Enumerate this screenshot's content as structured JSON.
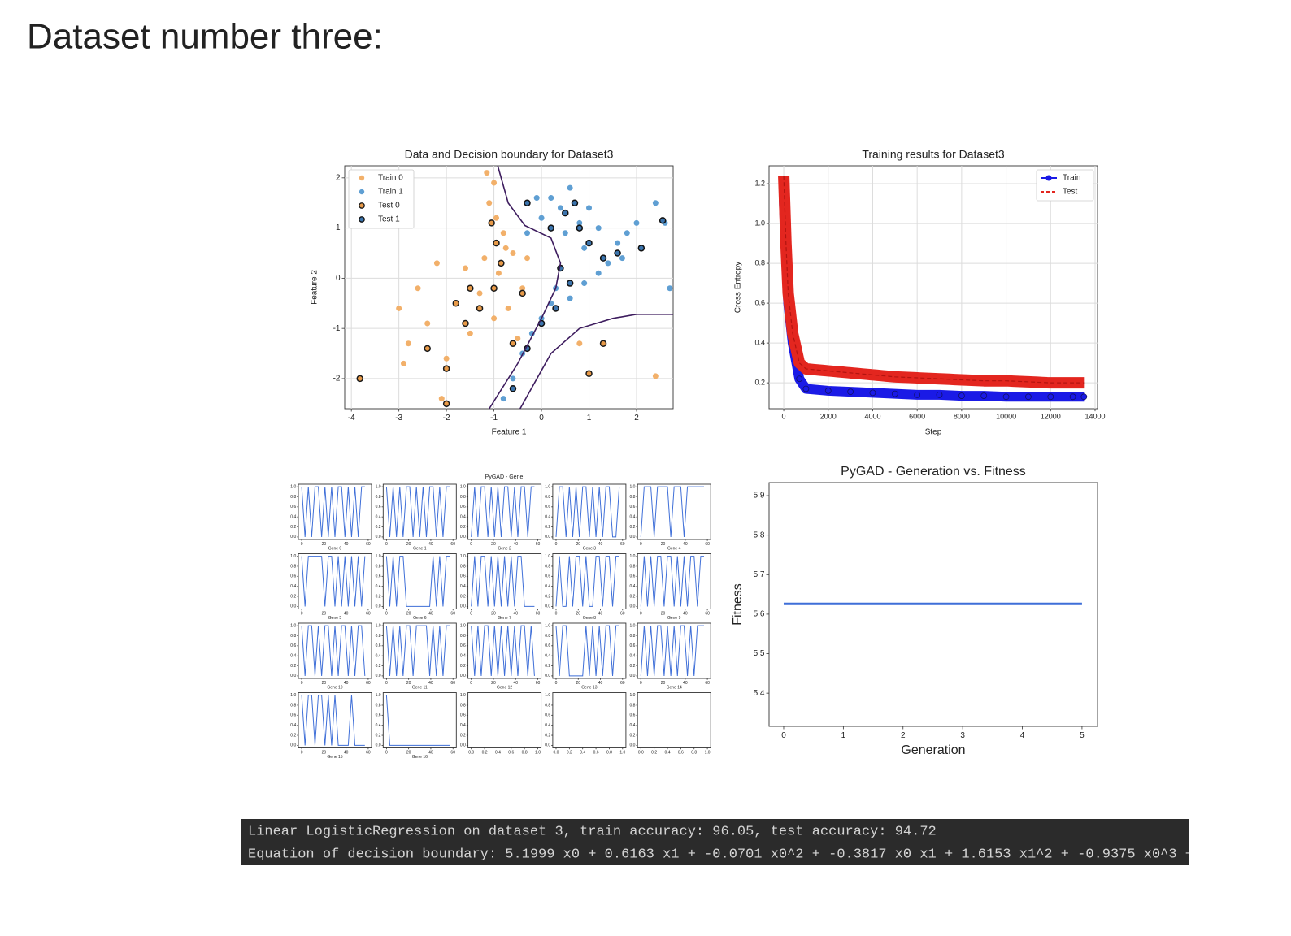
{
  "heading": "Dataset number three:",
  "chart_data": [
    {
      "type": "scatter",
      "title": "Data and Decision boundary for Dataset3",
      "x_label": "Feature 1",
      "y_label": "Feature 2",
      "xlim": [
        -4.14,
        2.77
      ],
      "ylim": [
        -2.6,
        2.24
      ],
      "xticks": [
        -4,
        -3,
        -2,
        -1,
        0,
        1,
        2
      ],
      "yticks": [
        -2,
        -1,
        0,
        1,
        2
      ],
      "grid": true,
      "legend": "upper left",
      "series": [
        {
          "name": "Train 0",
          "color": "#f2b06a",
          "x": [
            -3,
            -2.8,
            -2.6,
            -2.4,
            -2.2,
            -2.0,
            -1.8,
            -1.6,
            -1.5,
            -1.3,
            -1.2,
            -1.0,
            -0.9,
            -0.7,
            -0.6,
            -0.5,
            -0.4,
            -1.1,
            -1.0,
            -0.95,
            -0.8,
            -0.75,
            -1.15,
            -2.9,
            -2.1,
            2.4,
            0.8,
            -0.3
          ],
          "y": [
            -0.6,
            -1.3,
            -0.2,
            -0.9,
            0.3,
            -1.6,
            -0.5,
            0.2,
            -1.1,
            -0.3,
            0.4,
            -0.8,
            0.1,
            -0.6,
            0.5,
            -1.2,
            -0.2,
            1.5,
            1.9,
            1.2,
            0.9,
            0.6,
            2.1,
            -1.7,
            -2.4,
            -1.95,
            -1.3,
            0.4
          ]
        },
        {
          "name": "Train 1",
          "color": "#5f9fd3",
          "x": [
            0,
            0.2,
            0.4,
            0.6,
            0.8,
            1.0,
            1.2,
            0.5,
            0.9,
            1.4,
            1.6,
            1.8,
            2.0,
            2.4,
            2.6,
            0.3,
            0.6,
            0.9,
            1.2,
            0.0,
            -0.2,
            -0.4,
            -0.6,
            -0.8,
            0.2,
            1.7,
            2.7,
            -0.3,
            -0.1
          ],
          "y": [
            1.2,
            1.6,
            1.4,
            1.8,
            1.1,
            1.4,
            1.0,
            0.9,
            0.6,
            0.3,
            0.7,
            0.9,
            1.1,
            1.5,
            1.1,
            -0.2,
            -0.4,
            -0.1,
            0.1,
            -0.8,
            -1.1,
            -1.5,
            -2.0,
            -2.4,
            -0.5,
            0.4,
            -0.2,
            0.9,
            1.6
          ]
        },
        {
          "name": "Test 0",
          "color": "#e89a48",
          "edgecolor": "#1a1a1a",
          "x": [
            -3.82,
            -2.4,
            -2.0,
            -1.6,
            -1.3,
            -1.0,
            -0.6,
            -0.4,
            -1.8,
            -1.05,
            -0.95,
            -0.85,
            1.0,
            -2.0,
            1.3,
            -1.5
          ],
          "y": [
            -2.0,
            -1.4,
            -1.8,
            -0.9,
            -0.6,
            -0.2,
            -1.3,
            -0.3,
            -0.5,
            1.1,
            0.7,
            0.3,
            -1.9,
            -2.5,
            -1.3,
            -0.2
          ]
        },
        {
          "name": "Test 1",
          "color": "#3b74ad",
          "edgecolor": "#111111",
          "x": [
            0.2,
            0.5,
            0.8,
            1.0,
            1.3,
            1.6,
            2.1,
            2.55,
            0.4,
            0.6,
            0.0,
            -0.3,
            -0.6,
            0.3,
            -0.3,
            0.7
          ],
          "y": [
            1.0,
            1.3,
            1.0,
            0.7,
            0.4,
            0.5,
            0.6,
            1.15,
            0.2,
            -0.1,
            -0.9,
            -1.4,
            -2.2,
            -0.6,
            1.5,
            1.5
          ]
        }
      ],
      "boundary_color": "#3d1c5e",
      "boundary": [
        {
          "x": [
            -0.92,
            -0.7,
            -0.35,
            0.2,
            0.4,
            0.3,
            0,
            -0.5,
            -1.1
          ],
          "y": [
            2.24,
            1.5,
            1.05,
            0.8,
            0.3,
            -0.2,
            -0.8,
            -1.7,
            -2.6
          ]
        },
        {
          "x": [
            -0.45,
            0.2,
            0.8,
            1.5,
            2.0,
            2.77
          ],
          "y": [
            -2.6,
            -1.5,
            -1.0,
            -0.8,
            -0.72,
            -0.72
          ]
        }
      ]
    },
    {
      "type": "line",
      "title": "Training results for Dataset3",
      "x_label": "Step",
      "y_label": "Cross Entropy",
      "xlim": [
        -660,
        14110
      ],
      "ylim": [
        0.07,
        1.29
      ],
      "xticks": [
        0,
        2000,
        4000,
        6000,
        8000,
        10000,
        12000,
        14000
      ],
      "yticks": [
        0.2,
        0.4,
        0.6,
        0.8,
        {
          "value": 1,
          "label": "1.0"
        },
        1.2
      ],
      "grid": true,
      "legend": "upper right",
      "x": [
        0,
        100,
        200,
        400,
        700,
        1000,
        2000,
        3000,
        4000,
        5000,
        6000,
        7000,
        8000,
        9000,
        10000,
        11000,
        12000,
        13000,
        13500
      ],
      "series": [
        {
          "name": "Train",
          "color": "#1a1ae6",
          "marker": "o",
          "linestyle": "solid",
          "linewidth": 12,
          "values": [
            1.12,
            0.85,
            0.6,
            0.4,
            0.22,
            0.17,
            0.16,
            0.155,
            0.15,
            0.145,
            0.14,
            0.14,
            0.135,
            0.135,
            0.13,
            0.13,
            0.13,
            0.13,
            0.13
          ]
        },
        {
          "name": "Test",
          "color": "#e3261f",
          "linestyle": "dashed",
          "linewidth": 14,
          "values": [
            1.24,
            0.9,
            0.65,
            0.45,
            0.3,
            0.27,
            0.26,
            0.25,
            0.24,
            0.23,
            0.225,
            0.22,
            0.215,
            0.21,
            0.21,
            0.205,
            0.2,
            0.2,
            0.2
          ]
        }
      ]
    },
    {
      "type": "multiples",
      "title": "PyGAD - Gene",
      "color": "#3f6fd8",
      "x": [
        0,
        3,
        6,
        9,
        12,
        15,
        18,
        21,
        24,
        27,
        30,
        33,
        36,
        39,
        42,
        45,
        48,
        51,
        54,
        57
      ],
      "xlim": [
        -3,
        63
      ],
      "xticks": [
        0,
        20,
        40,
        60
      ],
      "ylim": [
        -0.05,
        1.05
      ],
      "yticks": [
        {
          "value": 0,
          "label": "0.0"
        },
        0.2,
        0.4,
        0.6,
        0.8,
        {
          "value": 1,
          "label": "1.0"
        }
      ],
      "empty_xlim": [
        -0.05,
        1.05
      ],
      "empty_xticks": [
        {
          "value": 0,
          "label": "0.0"
        },
        0.2,
        0.4,
        0.6,
        0.8,
        {
          "value": 1,
          "label": "1.0"
        }
      ],
      "panels": [
        {
          "title": "Gene 0",
          "values": [
            1,
            0,
            1,
            0,
            1,
            1,
            0,
            1,
            0,
            1,
            0,
            1,
            1,
            0,
            1,
            0,
            1,
            0,
            1,
            1
          ]
        },
        {
          "title": "Gene 1",
          "values": [
            1,
            0,
            1,
            0,
            1,
            0,
            1,
            1,
            0,
            1,
            0,
            1,
            0,
            1,
            1,
            0,
            1,
            0,
            1,
            1
          ]
        },
        {
          "title": "Gene 2",
          "values": [
            0,
            1,
            0,
            1,
            1,
            0,
            1,
            0,
            1,
            0,
            1,
            1,
            0,
            1,
            0,
            1,
            1,
            0,
            1,
            1
          ]
        },
        {
          "title": "Gene 3",
          "values": [
            0,
            1,
            1,
            0,
            1,
            0,
            1,
            0,
            1,
            1,
            0,
            1,
            0,
            1,
            0,
            1,
            1,
            0,
            0,
            1
          ]
        },
        {
          "title": "Gene 4",
          "values": [
            0,
            1,
            1,
            1,
            0,
            1,
            1,
            1,
            1,
            0,
            1,
            1,
            1,
            0,
            1,
            1,
            1,
            1,
            1,
            1
          ]
        },
        {
          "title": "Gene 5",
          "values": [
            1,
            0,
            1,
            1,
            1,
            1,
            1,
            0,
            1,
            1,
            0,
            1,
            0,
            1,
            0,
            1,
            0,
            1,
            0,
            1
          ]
        },
        {
          "title": "Gene 6",
          "values": [
            1,
            0,
            1,
            0,
            1,
            1,
            0,
            0,
            0,
            0,
            0,
            0,
            0,
            0,
            1,
            0,
            1,
            0,
            1,
            1
          ]
        },
        {
          "title": "Gene 7",
          "values": [
            0,
            1,
            0,
            1,
            1,
            0,
            1,
            0,
            1,
            0,
            1,
            0,
            1,
            0,
            1,
            1,
            0,
            0,
            0,
            0
          ]
        },
        {
          "title": "Gene 8",
          "values": [
            0,
            1,
            0,
            0,
            1,
            0,
            1,
            1,
            0,
            1,
            0,
            0,
            1,
            1,
            0,
            1,
            1,
            0,
            1,
            1
          ]
        },
        {
          "title": "Gene 9",
          "values": [
            0,
            1,
            0,
            1,
            0,
            1,
            1,
            0,
            1,
            1,
            0,
            1,
            0,
            1,
            0,
            1,
            1,
            0,
            1,
            1
          ]
        },
        {
          "title": "Gene 10",
          "values": [
            1,
            0,
            1,
            1,
            0,
            1,
            0,
            1,
            1,
            0,
            1,
            0,
            1,
            1,
            0,
            1,
            0,
            1,
            1,
            0
          ]
        },
        {
          "title": "Gene 11",
          "values": [
            1,
            0,
            1,
            0,
            1,
            0,
            1,
            1,
            0,
            1,
            1,
            1,
            1,
            0,
            1,
            0,
            1,
            0,
            1,
            1
          ]
        },
        {
          "title": "Gene 12",
          "values": [
            1,
            0,
            1,
            0,
            1,
            1,
            0,
            1,
            0,
            1,
            0,
            1,
            0,
            1,
            0,
            1,
            1,
            0,
            1,
            0
          ]
        },
        {
          "title": "Gene 13",
          "values": [
            1,
            0,
            1,
            1,
            0,
            0,
            0,
            0,
            0,
            1,
            0,
            1,
            0,
            1,
            0,
            1,
            1,
            0,
            1,
            1
          ]
        },
        {
          "title": "Gene 14",
          "values": [
            0,
            1,
            0,
            1,
            0,
            1,
            1,
            0,
            1,
            0,
            1,
            0,
            1,
            1,
            0,
            1,
            0,
            1,
            1,
            1
          ]
        },
        {
          "title": "Gene 15",
          "values": [
            1,
            0,
            1,
            1,
            0,
            1,
            1,
            0,
            1,
            0,
            1,
            0,
            0,
            0,
            0,
            1,
            0,
            0,
            0,
            0
          ]
        },
        {
          "title": "Gene 16",
          "values": [
            1,
            0,
            0,
            0,
            0,
            0,
            0,
            0,
            0,
            0,
            0,
            0,
            0,
            0,
            0,
            0,
            0,
            0,
            0,
            0
          ]
        }
      ]
    },
    {
      "type": "line",
      "title": "PyGAD - Generation vs. Fitness",
      "x_label": "Generation",
      "y_label": "Fitness",
      "xlim": [
        -0.245,
        5.26
      ],
      "ylim": [
        5.316,
        5.933
      ],
      "xticks": [
        0,
        1,
        2,
        3,
        4,
        5
      ],
      "yticks": [
        5.4,
        5.5,
        5.6,
        5.7,
        5.8,
        5.9
      ],
      "grid": false,
      "x": [
        0,
        1,
        2,
        3,
        4,
        5
      ],
      "series": [
        {
          "color": "#3f6fd8",
          "linestyle": "solid",
          "linewidth": 3,
          "values": [
            5.626,
            5.626,
            5.626,
            5.626,
            5.626,
            5.626
          ]
        }
      ]
    }
  ],
  "console": {
    "lines": [
      "Linear LogisticRegression on dataset 3, train accuracy: 96.05, test accuracy: 94.72",
      "Equation of decision boundary: 5.1999 x0 + 0.6163 x1 + -0.0701 x0^2 + -0.3817 x0 x1 + 1.6153 x1^2 + -0.9375 x0^3 +"
    ]
  }
}
